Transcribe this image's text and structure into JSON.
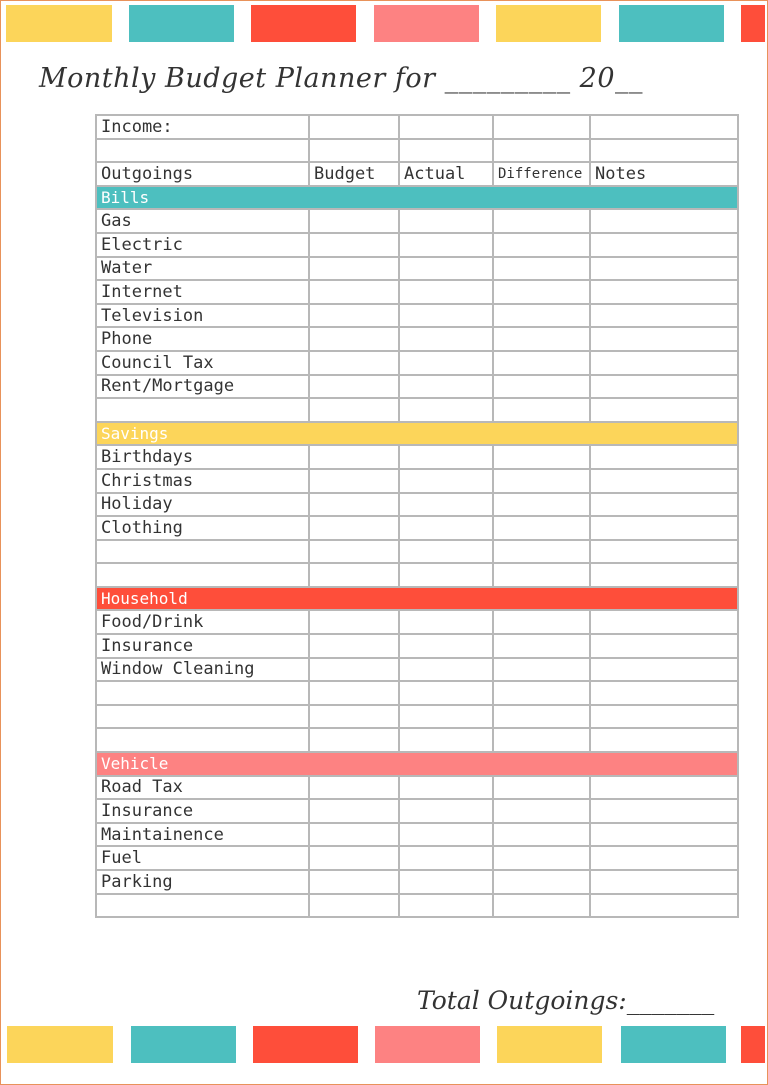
{
  "colors": {
    "yellow": "#fcd55a",
    "teal": "#4dbfbf",
    "red": "#fe4e3a",
    "pink": "#fd8282",
    "border": "#e8925a"
  },
  "top_bars": [
    "yellow",
    "teal",
    "red",
    "pink",
    "yellow",
    "teal",
    "red"
  ],
  "bottom_bars": [
    "yellow",
    "teal",
    "red",
    "pink",
    "yellow",
    "teal",
    "red"
  ],
  "title": "Monthly Budget Planner for _________ 20__",
  "table": {
    "income_label": "Income:",
    "headers": [
      "Outgoings",
      "Budget",
      "Actual",
      "Difference",
      "Notes"
    ],
    "sections": [
      {
        "name": "Bills",
        "color": "teal",
        "items": [
          "Gas",
          "Electric",
          "Water",
          "Internet",
          "Television",
          "Phone",
          "Council Tax",
          "Rent/Mortgage",
          ""
        ]
      },
      {
        "name": "Savings",
        "color": "yellow",
        "items": [
          "Birthdays",
          "Christmas",
          "Holiday",
          "Clothing",
          "",
          ""
        ]
      },
      {
        "name": "Household",
        "color": "red",
        "items": [
          "Food/Drink",
          "Insurance",
          "Window Cleaning",
          "",
          "",
          ""
        ]
      },
      {
        "name": "Vehicle",
        "color": "pink",
        "items": [
          "Road Tax",
          "Insurance",
          "Maintainence",
          "Fuel",
          "Parking",
          ""
        ]
      }
    ]
  },
  "total_label": "Total Outgoings:_______"
}
